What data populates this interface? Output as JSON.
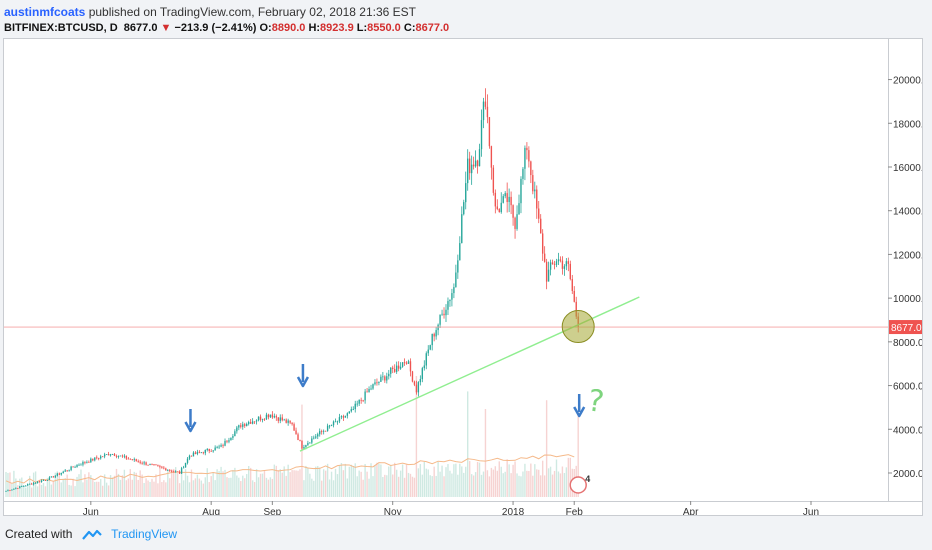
{
  "header": {
    "username": "austinmfcoats",
    "published_text": " published on TradingView.com, February 02, 2018 21:36 EST",
    "symbol": "BITFINEX:BTCUSD, D",
    "last": "8677.0",
    "change": "−213.9 (−2.41%)",
    "o_label": "O:",
    "o_value": "8890.0",
    "h_label": "H:",
    "h_value": "8923.9",
    "l_label": "L:",
    "l_value": "8550.0",
    "c_label": "C:",
    "c_value": "8677.0"
  },
  "footer": {
    "created_with": "Created with",
    "brand": "TradingView"
  },
  "colors": {
    "up": "#26a69a",
    "down": "#ef5350",
    "trendline": "#90ee90",
    "price_line": "#f4a0a0",
    "arrow": "#3d7cc9",
    "circle": "#a4a832",
    "avg_volume": "#f5b98a"
  },
  "annotations": {
    "question_mark": "?",
    "badge_count": "4"
  },
  "chart_data": {
    "type": "candlestick",
    "symbol": "BITFINEX:BTCUSD",
    "interval": "D",
    "y_ticks": [
      "20000.0",
      "18000.0",
      "16000.0",
      "14000.0",
      "12000.0",
      "10000.0",
      "8000.0",
      "6000.0",
      "4000.0",
      "2000.0"
    ],
    "y_tick_values": [
      20000,
      18000,
      16000,
      14000,
      12000,
      10000,
      8000,
      6000,
      4000,
      2000
    ],
    "x_ticks": [
      "Jun",
      "Aug",
      "Sep",
      "Nov",
      "2018",
      "Feb",
      "Apr",
      "Jun"
    ],
    "x_tick_dates": [
      "2017-06-01",
      "2017-08-01",
      "2017-09-01",
      "2017-11-01",
      "2018-01-01",
      "2018-02-01",
      "2018-04-01",
      "2018-06-01"
    ],
    "current_price_label": "8677.0",
    "current_price": 8677,
    "y_range": [
      0,
      21000
    ],
    "x_range": [
      "2017-04-18",
      "2018-07-08"
    ],
    "price_anchors": [
      {
        "date": "2017-04-18",
        "price": 1180
      },
      {
        "date": "2017-05-10",
        "price": 1750
      },
      {
        "date": "2017-05-25",
        "price": 2400
      },
      {
        "date": "2017-06-10",
        "price": 2900
      },
      {
        "date": "2017-06-25",
        "price": 2500
      },
      {
        "date": "2017-07-15",
        "price": 2000
      },
      {
        "date": "2017-07-20",
        "price": 2800
      },
      {
        "date": "2017-08-05",
        "price": 3200
      },
      {
        "date": "2017-08-15",
        "price": 4200
      },
      {
        "date": "2017-08-30",
        "price": 4700
      },
      {
        "date": "2017-09-10",
        "price": 4200
      },
      {
        "date": "2017-09-15",
        "price": 3200
      },
      {
        "date": "2017-09-22",
        "price": 3700
      },
      {
        "date": "2017-10-10",
        "price": 4800
      },
      {
        "date": "2017-10-20",
        "price": 5900
      },
      {
        "date": "2017-11-07",
        "price": 7200
      },
      {
        "date": "2017-11-12",
        "price": 5800
      },
      {
        "date": "2017-11-20",
        "price": 8200
      },
      {
        "date": "2017-12-01",
        "price": 10500
      },
      {
        "date": "2017-12-08",
        "price": 16000
      },
      {
        "date": "2017-12-13",
        "price": 16500
      },
      {
        "date": "2017-12-17",
        "price": 19300
      },
      {
        "date": "2017-12-22",
        "price": 14000
      },
      {
        "date": "2017-12-28",
        "price": 14500
      },
      {
        "date": "2018-01-01",
        "price": 13500
      },
      {
        "date": "2018-01-07",
        "price": 17000
      },
      {
        "date": "2018-01-12",
        "price": 14000
      },
      {
        "date": "2018-01-17",
        "price": 11000
      },
      {
        "date": "2018-01-22",
        "price": 11800
      },
      {
        "date": "2018-01-28",
        "price": 11400
      },
      {
        "date": "2018-02-02",
        "price": 8677
      }
    ],
    "volume_spikes": [
      {
        "date": "2017-09-15",
        "fraction": 0.42
      },
      {
        "date": "2017-11-12",
        "fraction": 0.55
      },
      {
        "date": "2017-12-08",
        "fraction": 0.48
      },
      {
        "date": "2017-12-17",
        "fraction": 0.4
      },
      {
        "date": "2018-01-17",
        "fraction": 0.44
      },
      {
        "date": "2018-02-02",
        "fraction": 0.38
      }
    ],
    "trendline": [
      {
        "date": "2017-09-15",
        "price": 3000
      },
      {
        "date": "2018-03-06",
        "price": 10050
      }
    ],
    "down_arrows": [
      "2017-07-21",
      "2017-09-16",
      "2018-02-02"
    ],
    "highlight_circle": {
      "date": "2018-02-02",
      "price": 8700
    }
  }
}
